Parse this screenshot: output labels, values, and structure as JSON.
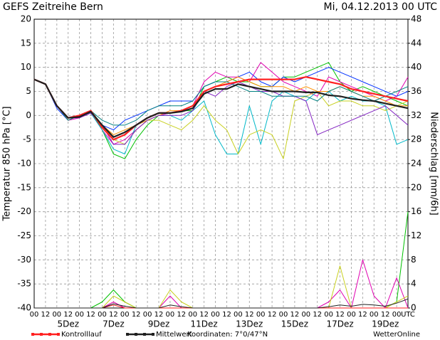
{
  "chart_data": {
    "type": "line",
    "title": "GEFS Zeitreihe Bern",
    "subtitle": "Mi, 04.12.2013 00 UTC",
    "ylabel": "Temperatur 850 hPa [°C]",
    "y2label": "Niederschlag [mm/6h]",
    "annotations": [
      "Koordinaten: 7°0/47°N",
      "WetterOnline"
    ],
    "grid": true,
    "ylim": [
      -40,
      20
    ],
    "yticks": [
      -40,
      -35,
      -30,
      -25,
      -20,
      -15,
      -10,
      -5,
      0,
      5,
      10,
      15,
      20
    ],
    "y2lim": [
      0,
      48
    ],
    "y2ticks": [
      0,
      4,
      8,
      12,
      16,
      20,
      24,
      28,
      32,
      36,
      40,
      44,
      48
    ],
    "xlim": [
      0,
      396
    ],
    "xticks": [
      {
        "value": 0,
        "label": "00"
      },
      {
        "value": 12,
        "label": "12"
      },
      {
        "value": 24,
        "label": "00"
      },
      {
        "value": 36,
        "label": "12"
      },
      {
        "value": 48,
        "label": "00"
      },
      {
        "value": 60,
        "label": "12"
      },
      {
        "value": 72,
        "label": "00"
      },
      {
        "value": 84,
        "label": "12"
      },
      {
        "value": 96,
        "label": "00"
      },
      {
        "value": 108,
        "label": "12"
      },
      {
        "value": 120,
        "label": "00"
      },
      {
        "value": 132,
        "label": "12"
      },
      {
        "value": 144,
        "label": "00"
      },
      {
        "value": 156,
        "label": "12"
      },
      {
        "value": 168,
        "label": "00"
      },
      {
        "value": 180,
        "label": "12"
      },
      {
        "value": 192,
        "label": "00"
      },
      {
        "value": 204,
        "label": "12"
      },
      {
        "value": 216,
        "label": "00"
      },
      {
        "value": 228,
        "label": "12"
      },
      {
        "value": 240,
        "label": "00"
      },
      {
        "value": 252,
        "label": "12"
      },
      {
        "value": 264,
        "label": "00"
      },
      {
        "value": 276,
        "label": "12"
      },
      {
        "value": 288,
        "label": "00"
      },
      {
        "value": 300,
        "label": "12"
      },
      {
        "value": 312,
        "label": "00"
      },
      {
        "value": 324,
        "label": "12"
      },
      {
        "value": 336,
        "label": "00"
      },
      {
        "value": 348,
        "label": "12"
      },
      {
        "value": 360,
        "label": "00"
      },
      {
        "value": 372,
        "label": "12"
      },
      {
        "value": 384,
        "label": "00"
      },
      {
        "value": 396,
        "label": "UTC"
      }
    ],
    "date_ticks": [
      {
        "value": 36,
        "label": "5Dez"
      },
      {
        "value": 84,
        "label": "7Dez"
      },
      {
        "value": 132,
        "label": "9Dez"
      },
      {
        "value": 180,
        "label": "11Dez"
      },
      {
        "value": 228,
        "label": "13Dez"
      },
      {
        "value": 276,
        "label": "15Dez"
      },
      {
        "value": 324,
        "label": "17Dez"
      },
      {
        "value": 372,
        "label": "19Dez"
      }
    ],
    "x": [
      0,
      12,
      24,
      36,
      48,
      60,
      72,
      84,
      96,
      108,
      120,
      132,
      144,
      156,
      168,
      180,
      192,
      204,
      216,
      228,
      240,
      252,
      264,
      276,
      288,
      300,
      312,
      324,
      336,
      348,
      360,
      372,
      384,
      396
    ],
    "series": [
      {
        "color": "#00c000",
        "values": [
          7.5,
          6.5,
          2,
          -0.5,
          0,
          1,
          -3,
          -8,
          -9,
          -5,
          -2,
          0,
          0.5,
          1,
          1,
          6,
          7,
          8,
          7,
          7,
          6,
          6,
          8,
          8,
          9,
          10,
          11,
          7,
          5,
          6,
          5,
          4,
          3,
          2
        ]
      },
      {
        "color": "#0030ff",
        "values": [
          7.5,
          6.5,
          1.5,
          -1,
          0,
          1,
          -2,
          -3,
          -1,
          0,
          1,
          2,
          3,
          3,
          3,
          6,
          7,
          7,
          8,
          9,
          7,
          6,
          8,
          7,
          8,
          9,
          10,
          9,
          8,
          7,
          6,
          5,
          4,
          5
        ]
      },
      {
        "color": "#e000b0",
        "values": [
          7.5,
          6.5,
          2,
          -1,
          -0.5,
          0.5,
          -3,
          -6,
          -5,
          -3,
          -1,
          0,
          0.5,
          1,
          2,
          7,
          9,
          8,
          8,
          7,
          11,
          9,
          7,
          6,
          5,
          4,
          8,
          7,
          6,
          5,
          4,
          3,
          4,
          8
        ]
      },
      {
        "color": "#00b8c8",
        "values": [
          7.5,
          6.5,
          2,
          -0.5,
          0,
          0.5,
          -3,
          -7,
          -8,
          -2,
          -1,
          0,
          0,
          -1,
          1,
          3,
          -4,
          -8,
          -8,
          2,
          -6,
          3,
          5,
          4,
          3,
          5,
          5,
          3,
          4,
          3,
          3,
          2,
          -6,
          -5
        ]
      },
      {
        "color": "#c8d020",
        "values": [
          7.5,
          6.5,
          2,
          -1,
          0,
          1,
          -2,
          -5,
          -6,
          -3,
          -1,
          -1,
          -2,
          -3,
          -1,
          2,
          -1,
          -3,
          -8,
          -4,
          -3,
          -4,
          -9,
          3,
          4,
          5,
          2,
          3,
          3,
          2,
          2,
          1,
          2,
          3
        ]
      },
      {
        "color": "#ff9000",
        "values": [
          7.5,
          6.5,
          2,
          -0.5,
          0,
          1,
          -2,
          -4,
          -3,
          -2,
          -1,
          0,
          1,
          1,
          2,
          5,
          6,
          7,
          8,
          7,
          6,
          6,
          6,
          5,
          6,
          5,
          5,
          6,
          5,
          4,
          4,
          3,
          2,
          2
        ]
      },
      {
        "color": "#8020c0",
        "values": [
          7.5,
          6.5,
          2,
          -0.5,
          -0.5,
          0.5,
          -2,
          -6,
          -6,
          -3,
          -1,
          0,
          0,
          0,
          1,
          5,
          4,
          6,
          7,
          6,
          5,
          5,
          4,
          4,
          3,
          -4,
          -3,
          -2,
          -1,
          0,
          1,
          2,
          0,
          -2
        ]
      },
      {
        "color": "#008080",
        "values": [
          7.5,
          6.5,
          2,
          -1,
          0,
          1,
          -1,
          -2,
          -2,
          -1,
          1,
          2,
          2,
          2,
          3,
          6,
          7,
          7,
          6,
          5,
          5,
          4,
          4,
          4,
          4,
          3,
          5,
          6,
          5,
          4,
          3,
          4,
          5,
          6
        ]
      },
      {
        "name": "Kontrolllauf",
        "color": "#ff2020",
        "values": [
          7.5,
          6.5,
          2,
          -0.5,
          0,
          1,
          -2.5,
          -5,
          -4,
          -2,
          -0.5,
          0.5,
          0.5,
          1,
          2,
          5,
          6,
          6.5,
          7,
          7.5,
          7.5,
          7.5,
          7.5,
          7.5,
          8,
          7.5,
          7,
          6.5,
          5.5,
          5,
          4.5,
          4,
          3.5,
          3
        ]
      },
      {
        "name": "Mittelwert",
        "color": "#202020",
        "values": [
          7.5,
          6.5,
          2,
          -0.5,
          -0.3,
          0.8,
          -2,
          -4.5,
          -3.5,
          -2,
          -0.5,
          0.5,
          0.5,
          0.8,
          1.5,
          4.5,
          5.5,
          5.5,
          6.5,
          6,
          5.5,
          5,
          5,
          5,
          4.8,
          4.8,
          4.2,
          4,
          3.5,
          3.2,
          3,
          2.5,
          2,
          1.5
        ]
      },
      {
        "axis": "y2",
        "color": "#00c000",
        "values": [
          0,
          0,
          0,
          0,
          0,
          0,
          1,
          3,
          1,
          0,
          0,
          0,
          0,
          0,
          0,
          0,
          0,
          0,
          0,
          0,
          0,
          0,
          0,
          0,
          0,
          0,
          0,
          0,
          0,
          0,
          0,
          0,
          1,
          16
        ]
      },
      {
        "axis": "y2",
        "color": "#e000b0",
        "values": [
          0,
          0,
          0,
          0,
          0,
          0,
          0,
          1,
          0,
          0,
          0,
          0,
          2,
          0,
          0,
          0,
          0,
          0,
          0,
          0,
          0,
          0,
          0,
          0,
          0,
          0,
          1,
          3,
          0,
          8,
          2,
          0,
          5,
          0
        ]
      },
      {
        "axis": "y2",
        "color": "#c8d020",
        "values": [
          0,
          0,
          0,
          0,
          0,
          0,
          0,
          2,
          1,
          0,
          0,
          0,
          3,
          1,
          0,
          0,
          0,
          0,
          0,
          0,
          0,
          0,
          0,
          0,
          0,
          0,
          0,
          7,
          0,
          0,
          0,
          0,
          1,
          2
        ]
      },
      {
        "axis": "y2",
        "color": "#ff2020",
        "values": [
          0,
          0,
          0,
          0,
          0,
          0,
          0,
          0.5,
          0,
          0,
          0,
          0,
          0,
          0,
          0,
          0,
          0,
          0,
          0,
          0,
          0,
          0,
          0,
          0,
          0,
          0,
          0,
          0,
          0,
          0,
          0,
          0,
          0,
          0
        ]
      },
      {
        "axis": "y2",
        "color": "#202020",
        "values": [
          0,
          0,
          0,
          0,
          0,
          0,
          0,
          0.7,
          0.3,
          0,
          0,
          0,
          0.5,
          0.2,
          0,
          0,
          0,
          0,
          0,
          0,
          0,
          0,
          0,
          0,
          0,
          0,
          0.2,
          0.5,
          0.3,
          0.6,
          0.5,
          0.3,
          0.8,
          1.5
        ]
      }
    ]
  }
}
